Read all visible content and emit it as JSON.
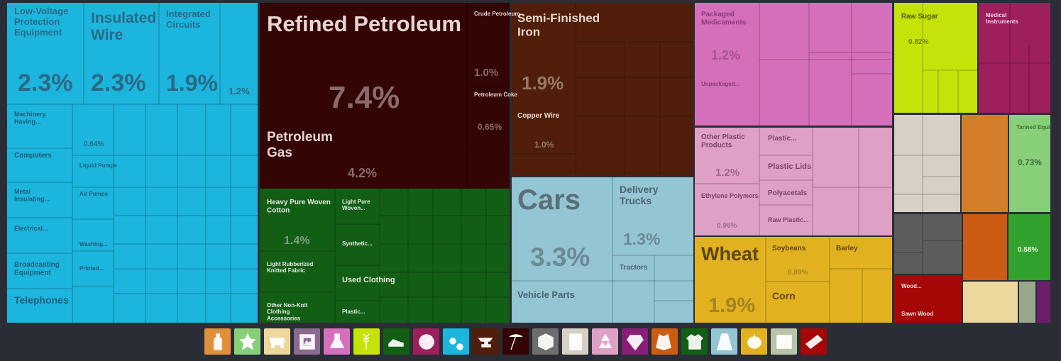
{
  "chart_data": {
    "type": "treemap",
    "colors": {
      "machinery": "#1cb5de",
      "mineral": "#330505",
      "textiles": "#135e15",
      "metals": "#501e0a",
      "transport": "#94c5d3",
      "chemicals": "#d56fbb",
      "plastics": "#dfa0c5",
      "vegetable": "#e2b120",
      "foodstuffs": "#c5e209",
      "instruments": "#9d1f5c",
      "stone": "#d7d0c4",
      "animal_hides": "#d37f2a",
      "animal": "#87cf78",
      "base_metals_misc": "#6e6e6e",
      "misc": "#cc5c14",
      "precious": "#32a12e",
      "wood": "#a60707",
      "paper": "#ecd79c"
    },
    "tiles": [
      {
        "label": "Low-Voltage Protection Equipment",
        "value": "2.3%",
        "group": "machinery"
      },
      {
        "label": "Insulated Wire",
        "value": "2.3%",
        "group": "machinery"
      },
      {
        "label": "Integrated Circuits",
        "value": "1.9%",
        "group": "machinery"
      },
      {
        "label": "",
        "value": "1.2%",
        "group": "machinery"
      },
      {
        "label": "Machinery Having...",
        "value": "",
        "group": "machinery"
      },
      {
        "label": "Computers",
        "value": "",
        "group": "machinery"
      },
      {
        "label": "Metal Insulating...",
        "value": "",
        "group": "machinery"
      },
      {
        "label": "Electrical...",
        "value": "",
        "group": "machinery"
      },
      {
        "label": "Broadcasting Equipment",
        "value": "",
        "group": "machinery"
      },
      {
        "label": "Telephones",
        "value": "",
        "group": "machinery"
      },
      {
        "label": "",
        "value": "0.64%",
        "group": "machinery"
      },
      {
        "label": "Liquid Pumps",
        "value": "",
        "group": "machinery"
      },
      {
        "label": "Air Pumps",
        "value": "",
        "group": "machinery"
      },
      {
        "label": "Washing...",
        "value": "",
        "group": "machinery"
      },
      {
        "label": "Printed...",
        "value": "",
        "group": "machinery"
      },
      {
        "label": "Refined Petroleum",
        "value": "7.4%",
        "group": "mineral"
      },
      {
        "label": "Petroleum Gas",
        "value": "4.2%",
        "group": "mineral"
      },
      {
        "label": "Crude Petroleum",
        "value": "1.0%",
        "group": "mineral"
      },
      {
        "label": "Petroleum Coke",
        "value": "0.65%",
        "group": "mineral"
      },
      {
        "label": "Heavy Pure Woven Cotton",
        "value": "1.4%",
        "group": "textiles"
      },
      {
        "label": "Light Pure Woven...",
        "value": "",
        "group": "textiles"
      },
      {
        "label": "Synthetic...",
        "value": "",
        "group": "textiles"
      },
      {
        "label": "Used Clothing",
        "value": "",
        "group": "textiles"
      },
      {
        "label": "Plastic...",
        "value": "",
        "group": "textiles"
      },
      {
        "label": "Light Rubberized Knitted Fabric",
        "value": "",
        "group": "textiles"
      },
      {
        "label": "Other Non-Knit Clothing Accessories",
        "value": "",
        "group": "textiles"
      },
      {
        "label": "Semi-Finished Iron",
        "value": "1.9%",
        "group": "metals"
      },
      {
        "label": "Copper Wire",
        "value": "1.0%",
        "group": "metals"
      },
      {
        "label": "Cars",
        "value": "3.3%",
        "group": "transport"
      },
      {
        "label": "Delivery Trucks",
        "value": "1.3%",
        "group": "transport"
      },
      {
        "label": "Tractors",
        "value": "",
        "group": "transport"
      },
      {
        "label": "Vehicle Parts",
        "value": "",
        "group": "transport"
      },
      {
        "label": "Packaged Medicaments",
        "value": "1.2%",
        "group": "chemicals"
      },
      {
        "label": "Unpackaged...",
        "value": "",
        "group": "chemicals"
      },
      {
        "label": "Other Plastic Products",
        "value": "1.2%",
        "group": "plastics"
      },
      {
        "label": "Ethylene Polymers",
        "value": "0.96%",
        "group": "plastics"
      },
      {
        "label": "Plastic...",
        "value": "",
        "group": "plastics"
      },
      {
        "label": "Plastic Lids",
        "value": "",
        "group": "plastics"
      },
      {
        "label": "Polyacetals",
        "value": "",
        "group": "plastics"
      },
      {
        "label": "Raw Plastic...",
        "value": "",
        "group": "plastics"
      },
      {
        "label": "Wheat",
        "value": "1.9%",
        "group": "vegetable"
      },
      {
        "label": "Soybeans",
        "value": "0.89%",
        "group": "vegetable"
      },
      {
        "label": "Corn",
        "value": "",
        "group": "vegetable"
      },
      {
        "label": "Barley",
        "value": "",
        "group": "vegetable"
      },
      {
        "label": "Raw Sugar",
        "value": "0.82%",
        "group": "foodstuffs"
      },
      {
        "label": "Medical Instruments",
        "value": "",
        "group": "instruments"
      },
      {
        "label": "Tanned Equine...",
        "value": "0.73%",
        "group": "animal"
      },
      {
        "label": "",
        "value": "0.58%",
        "group": "precious"
      },
      {
        "label": "Wood...",
        "value": "",
        "group": "wood"
      },
      {
        "label": "Sawn Wood",
        "value": "",
        "group": "wood"
      }
    ]
  },
  "categories_bar": [
    {
      "icon": "bottle-icon",
      "color": "#e0903a"
    },
    {
      "icon": "star-figure-icon",
      "color": "#87cf78"
    },
    {
      "icon": "cow-icon",
      "color": "#ecd79c"
    },
    {
      "icon": "picture-frame-icon",
      "color": "#8a6a8f"
    },
    {
      "icon": "flask-icon",
      "color": "#d56fbb"
    },
    {
      "icon": "wheat-icon",
      "color": "#c5e209"
    },
    {
      "icon": "shoe-icon",
      "color": "#135e15"
    },
    {
      "icon": "gauge-icon",
      "color": "#9d1f5c"
    },
    {
      "icon": "gears-icon",
      "color": "#1cb5de"
    },
    {
      "icon": "anvil-icon",
      "color": "#501e0a"
    },
    {
      "icon": "pickaxe-icon",
      "color": "#330505"
    },
    {
      "icon": "box-icon",
      "color": "#6e6e6e"
    },
    {
      "icon": "paper-icon",
      "color": "#d7d0c4"
    },
    {
      "icon": "recycle-icon",
      "color": "#dfa0c5"
    },
    {
      "icon": "diamond-icon",
      "color": "#8b1d78"
    },
    {
      "icon": "hide-icon",
      "color": "#cc5c14"
    },
    {
      "icon": "shirt-icon",
      "color": "#135e15"
    },
    {
      "icon": "road-icon",
      "color": "#94c5d3"
    },
    {
      "icon": "fruit-icon",
      "color": "#e2b120"
    },
    {
      "icon": "cart-icon",
      "color": "#b8c4a8"
    },
    {
      "icon": "plank-icon",
      "color": "#a60707"
    }
  ]
}
